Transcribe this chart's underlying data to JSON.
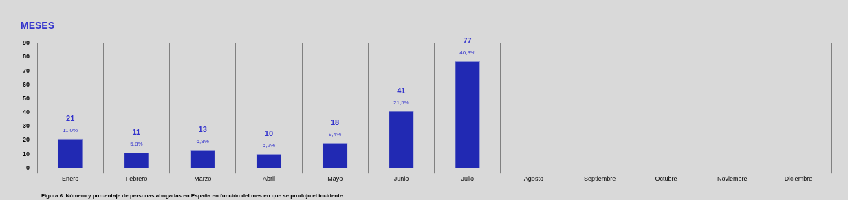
{
  "chart_data": {
    "type": "bar",
    "title": "MESES",
    "categories": [
      "Enero",
      "Febrero",
      "Marzo",
      "Abril",
      "Mayo",
      "Junio",
      "Julio",
      "Agosto",
      "Septiembre",
      "Octubre",
      "Noviembre",
      "Diciembre"
    ],
    "values": [
      21,
      11,
      13,
      10,
      18,
      41,
      77,
      null,
      null,
      null,
      null,
      null
    ],
    "color": "#2129b3",
    "ylim": [
      0,
      90
    ],
    "yticks": [
      0,
      10,
      20,
      30,
      40,
      50,
      60,
      70,
      80,
      90
    ],
    "grid": "x",
    "data_labels": true,
    "annotations": [
      {
        "text": "11,0%",
        "x": "Enero",
        "y": 21
      },
      {
        "text": "5,8%",
        "x": "Febrero",
        "y": 11
      },
      {
        "text": "6,8%",
        "x": "Marzo",
        "y": 13
      },
      {
        "text": "5,2%",
        "x": "Abril",
        "y": 10
      },
      {
        "text": "9,4%",
        "x": "Mayo",
        "y": 18
      },
      {
        "text": "21,5%",
        "x": "Junio",
        "y": 41
      },
      {
        "text": "40,3%",
        "x": "Julio",
        "y": 77
      },
      "Figura 6. Número y porcentaje de personas ahogadas en España en función del mes en que se produjo el incidente."
    ]
  }
}
